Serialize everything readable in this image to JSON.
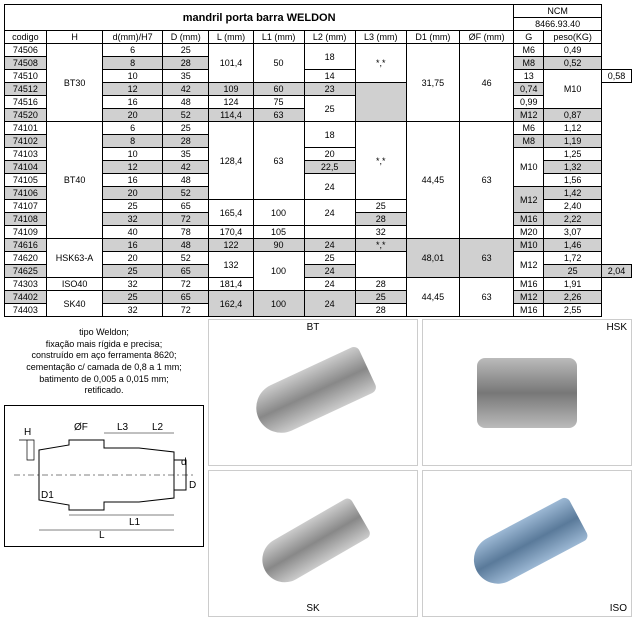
{
  "title": "mandril porta barra WELDON",
  "ncm_label": "NCM",
  "ncm_value": "8466.93.40",
  "headers": [
    "codigo",
    "H",
    "d(mm)/H7",
    "D (mm)",
    "L (mm)",
    "L1 (mm)",
    "L2 (mm)",
    "L3 (mm)",
    "D1 (mm)",
    "ØF (mm)",
    "G",
    "peso(KG)"
  ],
  "rows": [
    {
      "c": "74506",
      "h": "BT30",
      "hrs": 6,
      "d": "6",
      "D": "25",
      "L": "101,4",
      "Lrs": 3,
      "L1": "50",
      "L1rs": 3,
      "L2": "18",
      "L2rs": 2,
      "L3": "*,*",
      "L3rs": 3,
      "D1": "31,75",
      "D1rs": 6,
      "OF": "46",
      "OFrs": 6,
      "G": "M6",
      "Grs": 1,
      "p": "0,49",
      "shade": 0
    },
    {
      "c": "74508",
      "d": "8",
      "D": "28",
      "G": "M8",
      "Grs": 1,
      "p": "0,52",
      "shade": 1
    },
    {
      "c": "74510",
      "d": "10",
      "D": "35",
      "L2": "14",
      "L2rs": 1,
      "L3": "13",
      "L3rs": 1,
      "G": "M10",
      "Grs": 3,
      "p": "0,58",
      "shade": 0
    },
    {
      "c": "74512",
      "d": "12",
      "D": "42",
      "L": "109",
      "Lrs": 1,
      "L1": "60",
      "L1rs": 1,
      "L2": "23",
      "L2rs": 1,
      "L3": "",
      "L3rs": 3,
      "p": "0,74",
      "shade": 1
    },
    {
      "c": "74516",
      "d": "16",
      "D": "48",
      "L": "124",
      "Lrs": 1,
      "L1": "75",
      "L1rs": 1,
      "L2": "25",
      "L2rs": 2,
      "p": "0,99",
      "shade": 0
    },
    {
      "c": "74520",
      "d": "20",
      "D": "52",
      "L": "114,4",
      "Lrs": 1,
      "L1": "63",
      "L1rs": 1,
      "G": "M12",
      "Grs": 1,
      "p": "0,87",
      "shade": 1
    },
    {
      "c": "74101",
      "h": "BT40",
      "hrs": 9,
      "d": "6",
      "D": "25",
      "L": "128,4",
      "Lrs": 6,
      "L1": "63",
      "L1rs": 6,
      "L2": "18",
      "L2rs": 2,
      "L3": "*,*",
      "L3rs": 6,
      "D1": "44,45",
      "D1rs": 9,
      "OF": "63",
      "OFrs": 9,
      "G": "M6",
      "Grs": 1,
      "p": "1,12",
      "shade": 0
    },
    {
      "c": "74102",
      "d": "8",
      "D": "28",
      "G": "M8",
      "Grs": 1,
      "p": "1,19",
      "shade": 1
    },
    {
      "c": "74103",
      "d": "10",
      "D": "35",
      "L2": "20",
      "L2rs": 1,
      "G": "M10",
      "Grs": 3,
      "p": "1,25",
      "shade": 0
    },
    {
      "c": "74104",
      "d": "12",
      "D": "42",
      "L2": "22,5",
      "L2rs": 1,
      "p": "1,32",
      "shade": 1
    },
    {
      "c": "74105",
      "d": "16",
      "D": "48",
      "L2": "24",
      "L2rs": 2,
      "p": "1,56",
      "shade": 0
    },
    {
      "c": "74106",
      "d": "20",
      "D": "52",
      "G": "M12",
      "Grs": 2,
      "p": "1,42",
      "shade": 1
    },
    {
      "c": "74107",
      "d": "25",
      "D": "65",
      "L": "165,4",
      "Lrs": 2,
      "L1": "100",
      "L1rs": 2,
      "L2": "24",
      "L2rs": 2,
      "L3": "25",
      "L3rs": 1,
      "p": "2,40",
      "shade": 0
    },
    {
      "c": "74108",
      "d": "32",
      "D": "72",
      "L3": "28",
      "L3rs": 1,
      "G": "M16",
      "Grs": 1,
      "p": "2,22",
      "shade": 1
    },
    {
      "c": "74109",
      "d": "40",
      "D": "78",
      "L": "170,4",
      "Lrs": 1,
      "L1": "105",
      "L1rs": 1,
      "L2": "",
      "L2rs": 1,
      "L3": "32",
      "L3rs": 1,
      "G": "M20",
      "Grs": 1,
      "p": "3,07",
      "shade": 0
    },
    {
      "c": "74616",
      "h": "HSK63-A",
      "hrs": 3,
      "d": "16",
      "D": "48",
      "L": "122",
      "Lrs": 1,
      "L1": "90",
      "L1rs": 1,
      "L2": "24",
      "L2rs": 1,
      "L3": "*,*",
      "L3rs": 1,
      "D1": "48,01",
      "D1rs": 3,
      "OF": "63",
      "OFrs": 3,
      "G": "M10",
      "Grs": 1,
      "p": "1,46",
      "shade": 1
    },
    {
      "c": "74620",
      "d": "20",
      "D": "52",
      "L": "132",
      "Lrs": 2,
      "L1": "100",
      "L1rs": 3,
      "L2": "25",
      "L2rs": 1,
      "L3": "",
      "L3rs": 2,
      "G": "M12",
      "Grs": 2,
      "p": "1,72",
      "shade": 0
    },
    {
      "c": "74625",
      "d": "25",
      "D": "65",
      "L2": "24",
      "L2rs": 1,
      "L3": "25",
      "L3rs": 1,
      "p": "2,04",
      "shade": 1
    },
    {
      "c": "74303",
      "h": "ISO40",
      "hrs": 1,
      "d": "32",
      "D": "72",
      "L": "181,4",
      "Lrs": 1,
      "L2": "24",
      "L2rs": 1,
      "L3": "28",
      "L3rs": 1,
      "D1": "44,45",
      "D1rs": 3,
      "OF": "63",
      "OFrs": 3,
      "G": "M16",
      "Grs": 1,
      "p": "1,91",
      "shade": 0
    },
    {
      "c": "74402",
      "h": "SK40",
      "hrs": 2,
      "d": "25",
      "D": "65",
      "L": "162,4",
      "Lrs": 2,
      "L1": "100",
      "L1rs": 2,
      "L2": "24",
      "L2rs": 2,
      "L3": "25",
      "L3rs": 1,
      "G": "M12",
      "Grs": 1,
      "p": "2,26",
      "shade": 1
    },
    {
      "c": "74403",
      "d": "32",
      "D": "72",
      "L3": "28",
      "L3rs": 1,
      "G": "M16",
      "Grs": 1,
      "p": "2,55",
      "shade": 0
    }
  ],
  "description": [
    "tipo Weldon;",
    "fixação mais rígida e precisa;",
    "construído em aço ferramenta 8620;",
    "cementação c/ camada de 0,8 a 1 mm;",
    "batimento de 0,005 a 0,015 mm;",
    "retificado."
  ],
  "diagram_labels": {
    "H": "H",
    "OF": "ØF",
    "L3": "L3",
    "L2": "L2",
    "d": "d",
    "D": "D",
    "D1": "D1",
    "L1": "L1",
    "L": "L"
  },
  "photo_labels": {
    "bt": "BT",
    "hsk": "HSK",
    "sk": "SK",
    "iso": "ISO"
  }
}
